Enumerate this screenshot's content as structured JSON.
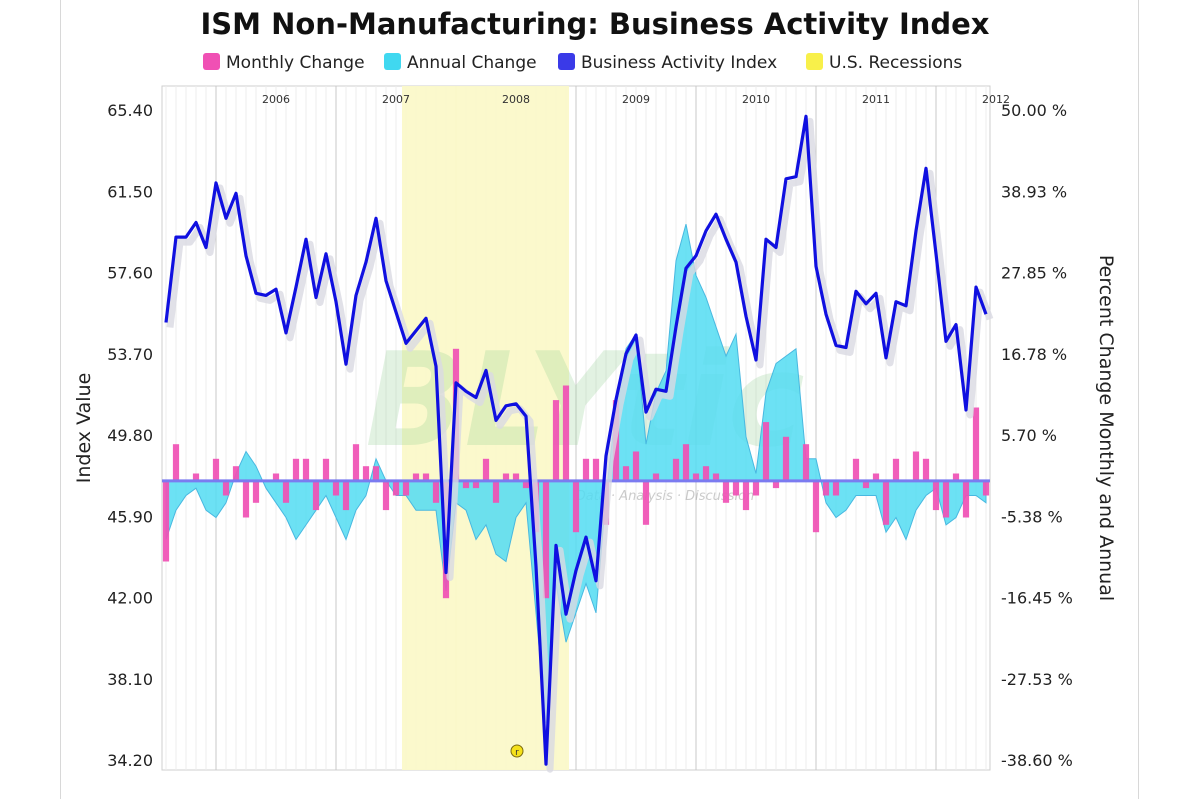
{
  "chart_data": {
    "type": "line",
    "title": "ISM Non-Manufacturing: Business Activity Index",
    "left_axis": {
      "label": "Index Value",
      "ticks": [
        "65.40",
        "61.50",
        "57.60",
        "53.70",
        "49.80",
        "45.90",
        "42.00",
        "38.10",
        "34.20"
      ],
      "min": 34.2,
      "max": 65.4
    },
    "right_axis": {
      "label": "Percent Change Monthly and Annual",
      "ticks": [
        "50.00 %",
        "38.93 %",
        "27.85 %",
        "16.78 %",
        "5.70 %",
        "-5.38 %",
        "-16.45 %",
        "-27.53 %",
        "-38.60 %"
      ],
      "min": -38.6,
      "max": 50.0
    },
    "years": [
      "2006",
      "2007",
      "2008",
      "2009",
      "2010",
      "2011",
      "2012"
    ],
    "year_start_month_index": [
      0,
      12,
      24,
      36,
      48,
      60,
      72
    ],
    "recession": {
      "start_index": 23,
      "end_index": 40
    },
    "zero_line_left_value": 47.6,
    "legend": [
      {
        "label": "Monthly Change",
        "color": "#f050b4"
      },
      {
        "label": "Annual Change",
        "color": "#40d8f0"
      },
      {
        "label": "Business Activity Index",
        "color": "#3a3ae8"
      },
      {
        "label": "U.S. Recessions",
        "color": "#f8f04a"
      }
    ],
    "watermark": {
      "letters": "BLYtic",
      "tagline": "Data · Analysis · Discussion"
    },
    "recession_marker": "r",
    "series": [
      {
        "name": "Business Activity Index",
        "axis": "left",
        "start": "2005-08",
        "values": [
          55.2,
          59.3,
          59.3,
          60.0,
          58.8,
          61.9,
          60.2,
          61.4,
          58.4,
          56.6,
          56.5,
          56.8,
          54.7,
          56.9,
          59.2,
          56.4,
          58.5,
          56.2,
          53.2,
          56.5,
          58.1,
          60.2,
          57.2,
          55.7,
          54.2,
          54.8,
          55.4,
          53.1,
          43.2,
          52.3,
          51.9,
          51.6,
          52.9,
          50.5,
          51.2,
          51.3,
          50.7,
          43.5,
          34.0,
          44.5,
          41.2,
          43.3,
          44.9,
          42.8,
          48.8,
          51.5,
          53.7,
          54.6,
          50.9,
          52.0,
          51.9,
          55.0,
          57.8,
          58.4,
          59.6,
          60.4,
          59.2,
          58.1,
          55.5,
          53.4,
          59.2,
          58.8,
          62.1,
          62.2,
          65.1,
          57.9,
          55.6,
          54.1,
          54.0,
          56.7,
          56.1,
          56.6,
          53.5,
          56.2,
          56.0,
          59.6,
          62.6,
          58.5,
          54.3,
          55.1,
          51.0,
          56.9,
          55.6
        ]
      },
      {
        "name": "Annual Change",
        "axis": "right",
        "start": "2005-08",
        "values": [
          -8,
          -4,
          -2,
          -1,
          -4,
          -5,
          -3,
          1,
          4,
          2,
          -1,
          -3,
          -5,
          -8,
          -6,
          -4,
          -2,
          -5,
          -8,
          -4,
          -2,
          3,
          0,
          -2,
          -2,
          -4,
          -4,
          -4,
          -15,
          -3,
          -4,
          -8,
          -6,
          -10,
          -11,
          -5,
          -3,
          -18,
          -33,
          -14,
          -22,
          -18,
          -14,
          -18,
          -2,
          10,
          18,
          20,
          5,
          12,
          15,
          30,
          35,
          28,
          25,
          21,
          17,
          20,
          6,
          1,
          12,
          16,
          17,
          18,
          3,
          3,
          -3,
          -5,
          -4,
          -2,
          -2,
          -2,
          -7,
          -5,
          -8,
          -4,
          -2,
          -1,
          -6,
          -5,
          -2,
          -2,
          -3
        ]
      },
      {
        "name": "Monthly Change",
        "axis": "right",
        "start": "2005-08",
        "values": [
          -11,
          5,
          0,
          1,
          0,
          3,
          -2,
          2,
          -5,
          -3,
          0,
          1,
          -3,
          3,
          3,
          -4,
          3,
          -2,
          -4,
          5,
          2,
          2,
          -4,
          -2,
          -2,
          1,
          1,
          -3,
          -16,
          18,
          -1,
          -1,
          3,
          -3,
          1,
          1,
          -1,
          -7,
          -16,
          11,
          13,
          -7,
          3,
          3,
          -6,
          11,
          2,
          4,
          -6,
          1,
          0,
          3,
          5,
          1,
          2,
          1,
          -3,
          -2,
          -4,
          -2,
          8,
          -1,
          6,
          0,
          5,
          -7,
          -2,
          -2,
          0,
          3,
          -1,
          1,
          -6,
          3,
          0,
          4,
          3,
          -4,
          -5,
          1,
          -5,
          10,
          -2
        ]
      }
    ]
  }
}
